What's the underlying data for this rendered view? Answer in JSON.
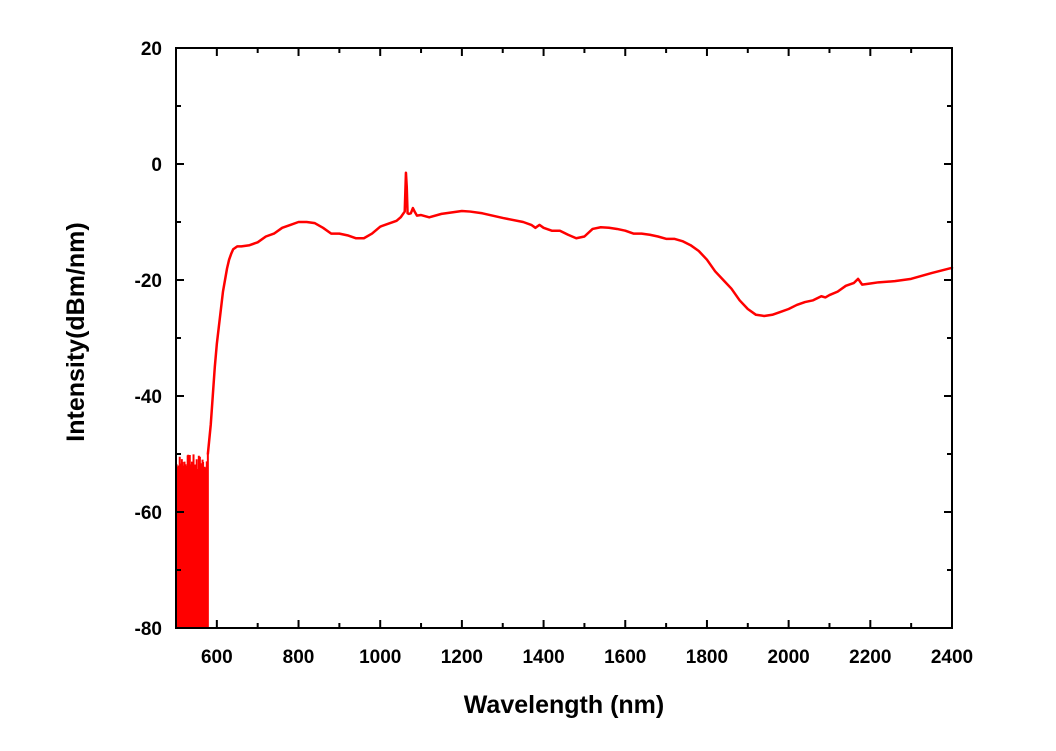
{
  "chart_data": {
    "type": "line",
    "title": "",
    "xlabel": "Wavelength (nm)",
    "ylabel": "Intensity(dBm/nm)",
    "xlim": [
      500,
      2400
    ],
    "ylim": [
      -80,
      20
    ],
    "x_ticks": [
      600,
      800,
      1000,
      1200,
      1400,
      1600,
      1800,
      2000,
      2200,
      2400
    ],
    "y_ticks": [
      20,
      0,
      -20,
      -40,
      -60,
      -80
    ],
    "x_tick_labels": [
      "600",
      "800",
      "1000",
      "1200",
      "1400",
      "1600",
      "1800",
      "2000",
      "2200",
      "2400"
    ],
    "y_tick_labels": [
      "20",
      "0",
      "-20",
      "-40",
      "-60",
      "-80"
    ],
    "grid": false,
    "legend": "none",
    "series": [
      {
        "name": "spectrum",
        "color": "#ff0000",
        "noise_floor": {
          "x_range": [
            500,
            578
          ],
          "y_top_range": [
            -54,
            -50
          ],
          "y_bottom": -80
        },
        "x": [
          578,
          585,
          590,
          595,
          600,
          605,
          610,
          615,
          620,
          625,
          630,
          635,
          640,
          650,
          660,
          680,
          700,
          720,
          740,
          760,
          780,
          800,
          820,
          840,
          860,
          880,
          900,
          920,
          940,
          960,
          980,
          1000,
          1020,
          1040,
          1050,
          1060,
          1063,
          1065,
          1067,
          1070,
          1075,
          1080,
          1085,
          1090,
          1100,
          1120,
          1150,
          1200,
          1220,
          1250,
          1300,
          1350,
          1370,
          1380,
          1390,
          1400,
          1420,
          1440,
          1460,
          1480,
          1500,
          1520,
          1540,
          1560,
          1580,
          1600,
          1620,
          1640,
          1660,
          1680,
          1700,
          1720,
          1740,
          1760,
          1780,
          1800,
          1820,
          1840,
          1860,
          1880,
          1900,
          1920,
          1940,
          1960,
          1980,
          2000,
          2020,
          2040,
          2060,
          2080,
          2090,
          2100,
          2120,
          2140,
          2160,
          2170,
          2180,
          2200,
          2220,
          2260,
          2300,
          2350,
          2400
        ],
        "y": [
          -50,
          -45,
          -40,
          -35,
          -31,
          -28,
          -25,
          -22,
          -20,
          -18,
          -16.5,
          -15.5,
          -14.7,
          -14.2,
          -14.2,
          -14,
          -13.5,
          -12.5,
          -12,
          -11,
          -10.5,
          -10,
          -10,
          -10.2,
          -11,
          -12,
          -12,
          -12.3,
          -12.8,
          -12.8,
          -12,
          -10.8,
          -10.3,
          -9.8,
          -9.2,
          -8.2,
          -1.5,
          -4,
          -8.5,
          -8.6,
          -8.5,
          -7.6,
          -8.3,
          -8.9,
          -8.8,
          -9.2,
          -8.6,
          -8.1,
          -8.2,
          -8.5,
          -9.3,
          -10,
          -10.5,
          -11,
          -10.5,
          -11,
          -11.5,
          -11.5,
          -12.2,
          -12.8,
          -12.5,
          -11.2,
          -10.9,
          -11,
          -11.2,
          -11.5,
          -12,
          -12,
          -12.2,
          -12.5,
          -12.9,
          -12.9,
          -13.3,
          -14,
          -15,
          -16.5,
          -18.5,
          -20,
          -21.5,
          -23.5,
          -25,
          -26,
          -26.2,
          -26,
          -25.5,
          -25,
          -24.3,
          -23.8,
          -23.5,
          -22.8,
          -23,
          -22.6,
          -22,
          -21,
          -20.5,
          -19.8,
          -20.8,
          -20.6,
          -20.4,
          -20.2,
          -19.8,
          -18.8,
          -17.9
        ]
      }
    ]
  }
}
